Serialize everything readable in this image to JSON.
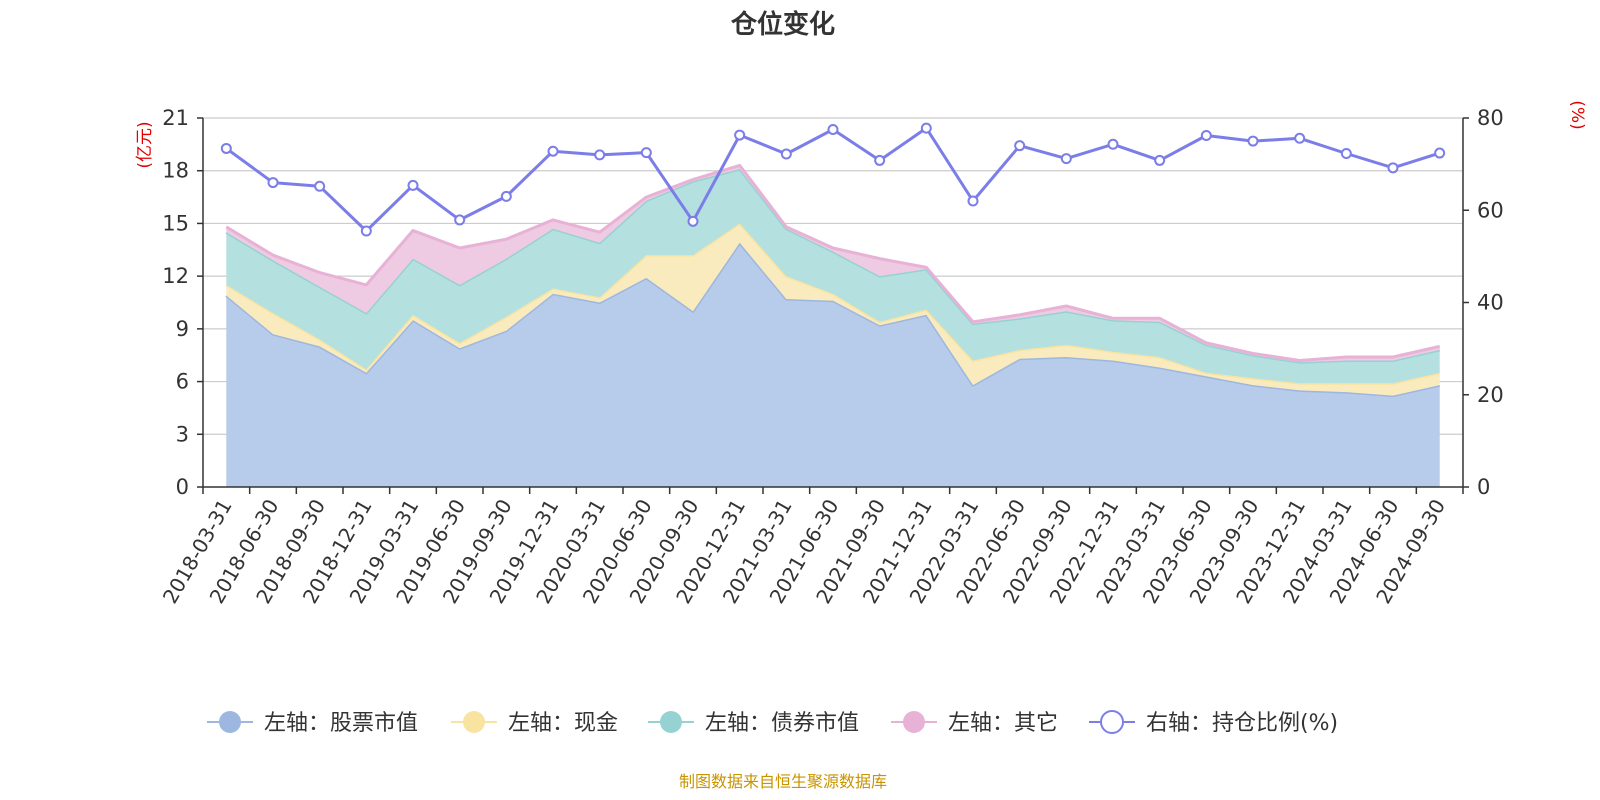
{
  "chart_data": {
    "type": "area",
    "title": "仓位变化",
    "left_axis_unit": "(亿元)",
    "right_axis_unit": "(%)",
    "left_axis_ticks": [
      "0",
      "3",
      "6",
      "9",
      "12",
      "15",
      "18",
      "21"
    ],
    "right_axis_ticks": [
      "0",
      "20",
      "40",
      "60",
      "80"
    ],
    "ylim_left": [
      0,
      21
    ],
    "ylim_right": [
      0,
      80
    ],
    "categories": [
      "2018-03-31",
      "2018-06-30",
      "2018-09-30",
      "2018-12-31",
      "2019-03-31",
      "2019-06-30",
      "2019-09-30",
      "2019-12-31",
      "2020-03-31",
      "2020-06-30",
      "2020-09-30",
      "2020-12-31",
      "2021-03-31",
      "2021-06-30",
      "2021-09-30",
      "2021-12-31",
      "2022-03-31",
      "2022-06-30",
      "2022-09-30",
      "2022-12-31",
      "2023-03-31",
      "2023-06-30",
      "2023-09-30",
      "2023-12-31",
      "2024-03-31",
      "2024-06-30",
      "2024-09-30"
    ],
    "series": [
      {
        "name": "左轴：股票市值",
        "axis": "left",
        "stack": true,
        "color": "#9db7e0",
        "fill": "#b7cbea",
        "values": [
          10.9,
          8.7,
          8.0,
          6.5,
          9.5,
          7.9,
          8.9,
          11.0,
          10.5,
          11.9,
          10.0,
          13.9,
          10.7,
          10.6,
          9.2,
          9.8,
          5.8,
          7.3,
          7.4,
          7.2,
          6.8,
          6.3,
          5.8,
          5.5,
          5.4,
          5.2,
          5.8
        ]
      },
      {
        "name": "左轴：现金",
        "axis": "left",
        "stack": true,
        "color": "#f8e3a1",
        "fill": "#f9ebbd",
        "values": [
          0.6,
          1.2,
          0.4,
          0.2,
          0.3,
          0.3,
          0.8,
          0.3,
          0.3,
          1.3,
          3.2,
          1.1,
          1.3,
          0.4,
          0.2,
          0.3,
          1.4,
          0.5,
          0.7,
          0.5,
          0.6,
          0.2,
          0.4,
          0.4,
          0.5,
          0.7,
          0.7
        ]
      },
      {
        "name": "左轴：债券市值",
        "axis": "left",
        "stack": true,
        "color": "#96d2d2",
        "fill": "#b4e0df",
        "values": [
          3.0,
          3.0,
          3.0,
          3.2,
          3.2,
          3.3,
          3.3,
          3.4,
          3.1,
          3.1,
          4.2,
          3.1,
          2.7,
          2.4,
          2.6,
          2.3,
          2.1,
          1.8,
          1.9,
          1.8,
          2.0,
          1.6,
          1.3,
          1.2,
          1.3,
          1.3,
          1.3
        ]
      },
      {
        "name": "左轴：其它",
        "axis": "left",
        "stack": true,
        "color": "#e8b1d6",
        "fill": "#eecbe2",
        "values": [
          0.3,
          0.3,
          0.8,
          1.6,
          1.6,
          2.1,
          1.1,
          0.5,
          0.6,
          0.2,
          0.1,
          0.2,
          0.1,
          0.2,
          1.0,
          0.1,
          0.1,
          0.2,
          0.3,
          0.1,
          0.2,
          0.1,
          0.1,
          0.1,
          0.2,
          0.2,
          0.2
        ]
      },
      {
        "name": "右轴：持仓比例(%)",
        "axis": "right",
        "stack": false,
        "color": "#7b7de8",
        "values": [
          73.4,
          66.0,
          65.2,
          55.5,
          65.4,
          57.9,
          63.0,
          72.8,
          72.0,
          72.5,
          57.6,
          76.3,
          72.2,
          77.5,
          70.8,
          77.8,
          62.0,
          74.0,
          71.2,
          74.3,
          70.8,
          76.2,
          75.0,
          75.6,
          72.3,
          69.2,
          72.4
        ]
      }
    ],
    "legend_position": "bottom",
    "grid": true
  },
  "footer": {
    "source": "制图数据来自恒生聚源数据库"
  }
}
